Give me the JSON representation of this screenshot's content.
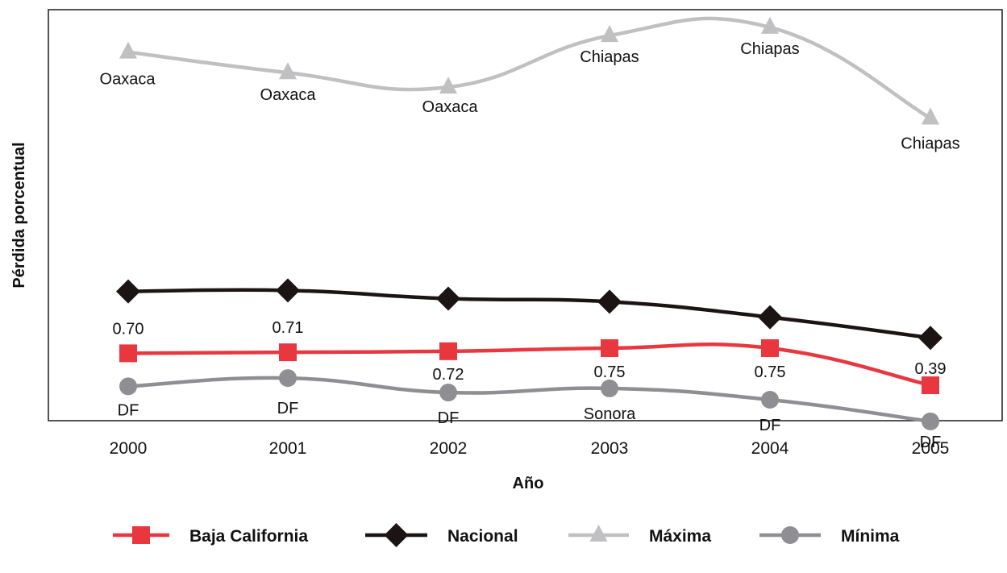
{
  "chart_data": {
    "type": "line",
    "xlabel": "Año",
    "ylabel": "Pérdida porcentual",
    "categories": [
      "2000",
      "2001",
      "2002",
      "2003",
      "2004",
      "2005"
    ],
    "grid": false,
    "legend_position": "bottom",
    "series": [
      {
        "name": "Máxima",
        "marker": "triangle",
        "color": "#c0c0c2",
        "values": [
          3.62,
          3.42,
          3.28,
          3.78,
          3.86,
          2.98
        ],
        "labels": [
          "Oaxaca",
          "Oaxaca",
          "Oaxaca",
          "Chiapas",
          "Chiapas",
          "Chiapas"
        ]
      },
      {
        "name": "Nacional",
        "marker": "diamond",
        "color": "#1c1414",
        "values": [
          1.3,
          1.31,
          1.23,
          1.2,
          1.05,
          0.85
        ],
        "labels": [
          "",
          "",
          "",
          "",
          "",
          ""
        ]
      },
      {
        "name": "Baja California",
        "marker": "square",
        "color": "#e8373f",
        "values": [
          0.7,
          0.71,
          0.72,
          0.75,
          0.75,
          0.39
        ],
        "labels": [
          "0.70",
          "0.71",
          "0.72",
          "0.75",
          "0.75",
          "0.39"
        ]
      },
      {
        "name": "Mínima",
        "marker": "circle",
        "color": "#8e8e93",
        "values": [
          0.38,
          0.46,
          0.32,
          0.36,
          0.25,
          0.04
        ],
        "labels": [
          "DF",
          "DF",
          "DF",
          "Sonora",
          "DF",
          "DF"
        ]
      }
    ],
    "legend_order": [
      "Baja California",
      "Nacional",
      "Máxima",
      "Mínima"
    ]
  }
}
